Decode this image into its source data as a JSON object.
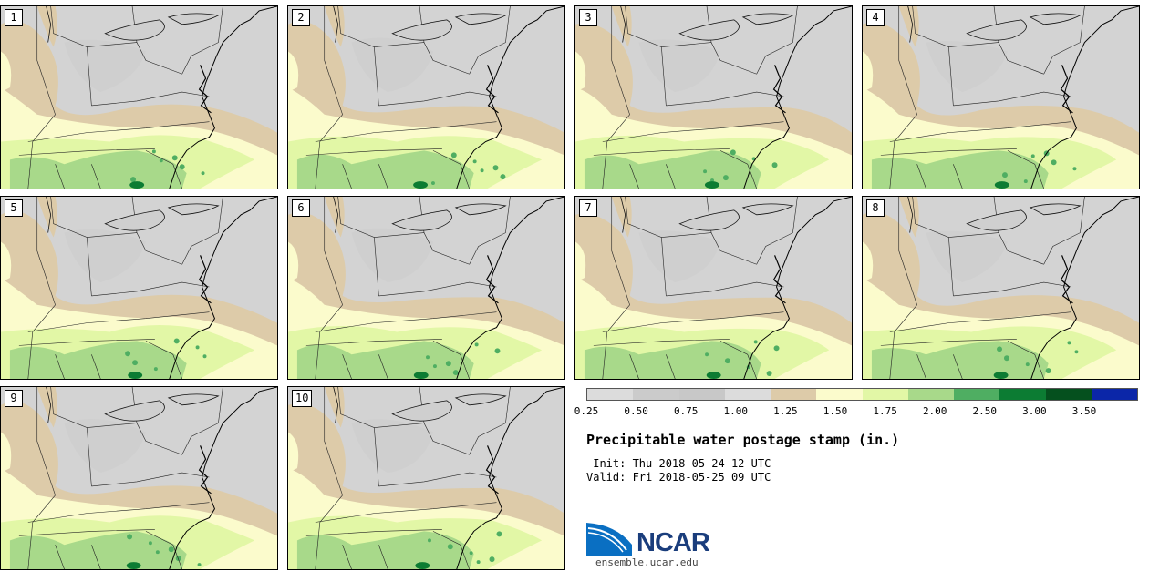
{
  "panels": [
    {
      "label": "1"
    },
    {
      "label": "2"
    },
    {
      "label": "3"
    },
    {
      "label": "4"
    },
    {
      "label": "5"
    },
    {
      "label": "6"
    },
    {
      "label": "7"
    },
    {
      "label": "8"
    },
    {
      "label": "9"
    },
    {
      "label": "10"
    }
  ],
  "colorbar": {
    "colors": [
      "#dcdcdc",
      "#cbcbcb",
      "#c8c8c8",
      "#dcdcdc",
      "#ddcba9",
      "#fbfbcc",
      "#e2f7a6",
      "#a8d98a",
      "#4fae62",
      "#0c7c33",
      "#05501e",
      "#0b26a8"
    ],
    "tick_labels": [
      "0.25",
      "0.50",
      "0.75",
      "1.00",
      "1.25",
      "1.50",
      "1.75",
      "2.00",
      "2.50",
      "3.00",
      "3.50"
    ]
  },
  "title": "Precipitable water postage stamp (in.)",
  "init": " Init: Thu 2018-05-24 12 UTC",
  "valid": "Valid: Fri 2018-05-25 09 UTC",
  "logo": {
    "text": "NCAR",
    "url": "ensemble.ucar.edu"
  }
}
